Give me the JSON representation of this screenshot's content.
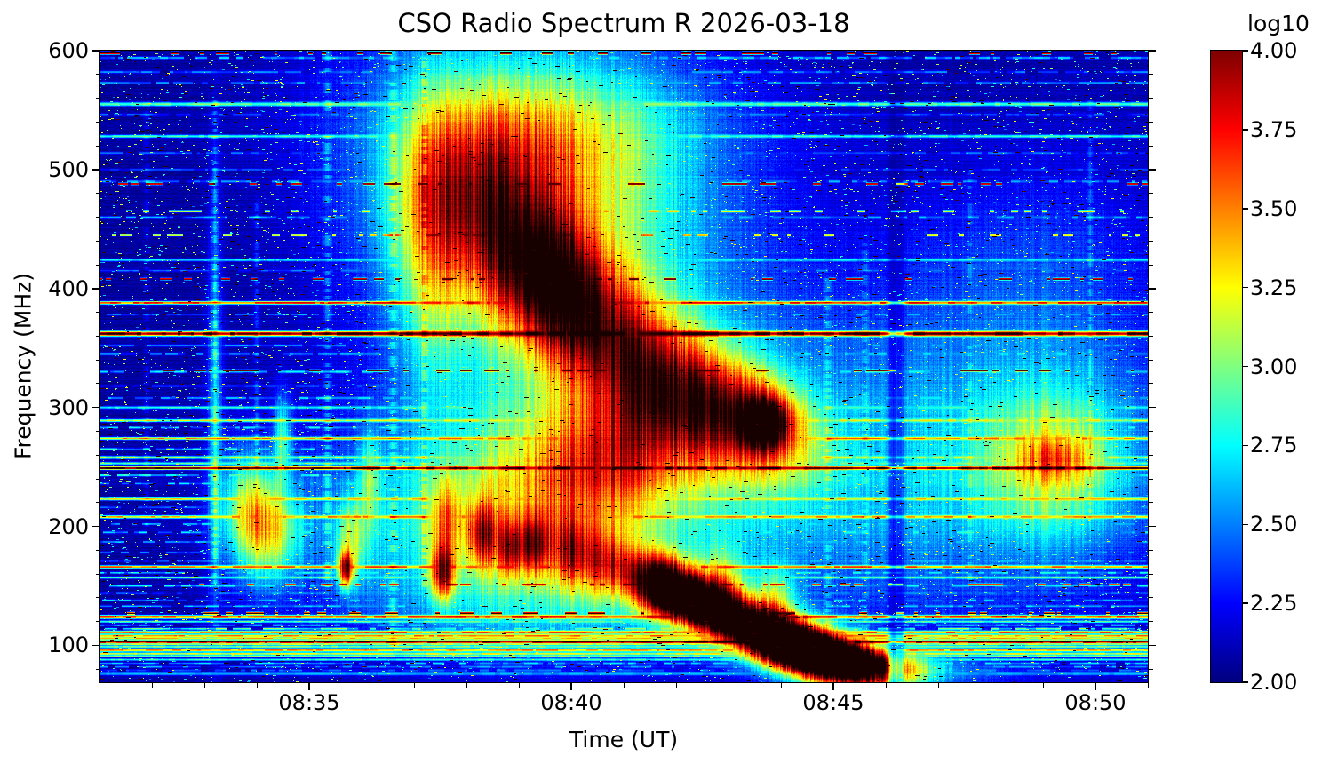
{
  "chart_data": {
    "type": "heatmap",
    "title": "CSO Radio Spectrum R 2026-03-18",
    "xlabel": "Time (UT)",
    "ylabel": "Frequency (MHz)",
    "x_span_minutes": 20,
    "x_major": [
      {
        "m": 4,
        "label": "08:35"
      },
      {
        "m": 9,
        "label": "08:40"
      },
      {
        "m": 14,
        "label": "08:45"
      },
      {
        "m": 19,
        "label": "08:50"
      }
    ],
    "x_minor_step_minutes": 1,
    "y_major": [
      {
        "f": 600,
        "label": "600"
      },
      {
        "f": 500,
        "label": "500"
      },
      {
        "f": 400,
        "label": "400"
      },
      {
        "f": 300,
        "label": "300"
      },
      {
        "f": 200,
        "label": "200"
      },
      {
        "f": 100,
        "label": "100"
      }
    ],
    "y_minor_step_mhz": 20,
    "ylim": [
      69,
      600
    ],
    "grid": false,
    "colorbar": {
      "label": "log10",
      "vmin": 2.0,
      "vmax": 4.0,
      "colormap": "jet",
      "position": "right",
      "ticks": [
        {
          "v": 4.0,
          "label": "4.00"
        },
        {
          "v": 3.75,
          "label": "3.75"
        },
        {
          "v": 3.5,
          "label": "3.50"
        },
        {
          "v": 3.25,
          "label": "3.25"
        },
        {
          "v": 3.0,
          "label": "3.00"
        },
        {
          "v": 2.75,
          "label": "2.75"
        },
        {
          "v": 2.5,
          "label": "2.50"
        },
        {
          "v": 2.25,
          "label": "2.25"
        },
        {
          "v": 2.0,
          "label": "2.00"
        }
      ]
    },
    "background_level": 2.06,
    "noise": {
      "row": 0.04,
      "column": 0.14,
      "pixel": 0.11,
      "bright_speckles": 8000,
      "white_speckles": 3000,
      "dark_speckles": 2000
    },
    "rfi_lines_comment": "persistent horizontal interference lines: [freq_MHz, log10_level, halfwidth_MHz, style]",
    "rfi_lines": [
      [
        598,
        4.3,
        0.8,
        "dots"
      ],
      [
        594,
        2.7,
        0.8,
        "patchy"
      ],
      [
        582,
        2.55,
        0.8,
        "patchy"
      ],
      [
        573,
        2.6,
        0.7,
        "patchy"
      ],
      [
        555,
        3.0,
        1.2,
        "solid"
      ],
      [
        546,
        2.6,
        0.7,
        "patchy"
      ],
      [
        528,
        2.9,
        0.9,
        "solid"
      ],
      [
        514,
        2.5,
        0.7,
        "patchy"
      ],
      [
        500,
        2.45,
        0.7,
        "patchy"
      ],
      [
        490,
        2.6,
        0.8,
        "patchy"
      ],
      [
        488,
        4.2,
        0.5,
        "dots"
      ],
      [
        465,
        3.6,
        0.6,
        "dots"
      ],
      [
        460,
        2.6,
        0.6,
        "patchy"
      ],
      [
        445,
        4.25,
        0.6,
        "dots"
      ],
      [
        424,
        2.75,
        0.8,
        "solid"
      ],
      [
        415,
        2.5,
        0.6,
        "patchy"
      ],
      [
        408,
        4.25,
        0.5,
        "dots"
      ],
      [
        388,
        3.8,
        0.9,
        "solid"
      ],
      [
        378,
        2.6,
        0.6,
        "patchy"
      ],
      [
        362,
        4.3,
        1.4,
        "solid"
      ],
      [
        352,
        2.65,
        0.7,
        "patchy"
      ],
      [
        345,
        2.8,
        0.7,
        "patchy"
      ],
      [
        331,
        4.2,
        0.5,
        "dots"
      ],
      [
        330,
        2.75,
        0.8,
        "patchy"
      ],
      [
        318,
        2.55,
        0.6,
        "patchy"
      ],
      [
        308,
        2.7,
        0.7,
        "patchy"
      ],
      [
        300,
        2.85,
        0.8,
        "solid"
      ],
      [
        289,
        3.25,
        0.8,
        "solid"
      ],
      [
        283,
        2.75,
        0.7,
        "patchy"
      ],
      [
        274,
        3.5,
        0.8,
        "solid"
      ],
      [
        265,
        2.8,
        0.7,
        "patchy"
      ],
      [
        258,
        3.15,
        0.9,
        "solid"
      ],
      [
        253,
        2.95,
        0.8,
        "solid"
      ],
      [
        249,
        4.3,
        0.9,
        "solid"
      ],
      [
        243,
        2.85,
        0.7,
        "patchy"
      ],
      [
        236,
        2.7,
        0.6,
        "patchy"
      ],
      [
        223,
        3.35,
        0.8,
        "solid"
      ],
      [
        216,
        2.7,
        0.6,
        "patchy"
      ],
      [
        208,
        3.5,
        0.9,
        "solid"
      ],
      [
        202,
        2.75,
        0.6,
        "patchy"
      ],
      [
        195,
        2.8,
        0.7,
        "patchy"
      ],
      [
        187,
        2.65,
        0.6,
        "patchy"
      ],
      [
        178,
        2.6,
        0.6,
        "patchy"
      ],
      [
        171,
        2.7,
        0.6,
        "patchy"
      ],
      [
        166,
        3.65,
        0.8,
        "solid"
      ],
      [
        161,
        2.8,
        0.6,
        "patchy"
      ],
      [
        157,
        2.95,
        0.7,
        "solid"
      ],
      [
        151,
        4.2,
        0.5,
        "dots"
      ],
      [
        150,
        2.75,
        0.7,
        "patchy"
      ],
      [
        144,
        2.7,
        0.6,
        "patchy"
      ],
      [
        138,
        2.65,
        0.6,
        "patchy"
      ],
      [
        133,
        2.7,
        0.6,
        "patchy"
      ],
      [
        127,
        4.25,
        0.7,
        "dots"
      ],
      [
        124,
        3.95,
        1.0,
        "solid"
      ],
      [
        120,
        2.95,
        0.7,
        "solid"
      ],
      [
        117,
        2.8,
        0.6,
        "patchy"
      ],
      [
        114,
        3.1,
        0.6,
        "patchy"
      ],
      [
        111,
        3.6,
        0.9,
        "solid"
      ],
      [
        108,
        3.55,
        0.9,
        "solid"
      ],
      [
        106,
        3.4,
        0.8,
        "solid"
      ],
      [
        103,
        4.3,
        1.0,
        "solid"
      ],
      [
        101,
        3.2,
        0.6,
        "solid"
      ],
      [
        99,
        3.05,
        0.8,
        "solid"
      ],
      [
        96,
        3.55,
        0.9,
        "solid"
      ],
      [
        93,
        3.3,
        0.8,
        "solid"
      ],
      [
        91,
        3.0,
        0.7,
        "solid"
      ],
      [
        88,
        2.85,
        0.7,
        "solid"
      ],
      [
        85,
        2.7,
        0.6,
        "patchy"
      ],
      [
        82,
        2.6,
        0.7,
        "patchy"
      ],
      [
        79,
        2.5,
        0.8,
        "patchy"
      ],
      [
        76,
        2.6,
        1.0,
        "solid"
      ]
    ],
    "bursts_comment": "gaussian emission features: [t_min_after_08:31, freq_MHz, sigma_t_min, sigma_f_MHz, amplitude_log10, drift_MHz_per_min]",
    "bursts": [
      [
        8.3,
        430,
        2.1,
        100,
        0.9,
        -15
      ],
      [
        8.6,
        405,
        0.8,
        40,
        1.35,
        -20
      ],
      [
        7.2,
        480,
        0.9,
        55,
        0.75,
        0
      ],
      [
        6.3,
        440,
        0.45,
        90,
        0.5,
        0
      ],
      [
        9.0,
        525,
        1.4,
        45,
        0.4,
        0
      ],
      [
        10.3,
        330,
        1.1,
        45,
        0.85,
        -30
      ],
      [
        11.5,
        305,
        1.0,
        38,
        0.8,
        -20
      ],
      [
        12.6,
        290,
        0.8,
        30,
        0.9,
        -15
      ],
      [
        12.7,
        287,
        0.3,
        14,
        1.3,
        0
      ],
      [
        8.8,
        240,
        1.4,
        45,
        0.65,
        0
      ],
      [
        9.8,
        260,
        0.8,
        35,
        0.55,
        0
      ],
      [
        12.4,
        115,
        1.6,
        17,
        1.8,
        -20
      ],
      [
        11.2,
        140,
        0.55,
        16,
        1.2,
        -15
      ],
      [
        13.4,
        100,
        0.9,
        15,
        1.75,
        -12
      ],
      [
        14.3,
        88,
        0.8,
        12,
        1.35,
        -8
      ],
      [
        11.9,
        152,
        0.3,
        22,
        0.7,
        0
      ],
      [
        12.9,
        140,
        0.28,
        20,
        0.6,
        0
      ],
      [
        14.9,
        84,
        1.3,
        10,
        0.65,
        -3
      ],
      [
        10.7,
        150,
        0.35,
        20,
        0.85,
        0
      ],
      [
        2.2,
        300,
        0.1,
        120,
        0.5,
        0
      ],
      [
        2.8,
        215,
        0.35,
        35,
        0.8,
        0
      ],
      [
        3.3,
        196,
        0.4,
        30,
        0.85,
        0
      ],
      [
        3.5,
        275,
        0.12,
        25,
        0.65,
        0
      ],
      [
        4.7,
        164,
        0.1,
        10,
        1.35,
        0
      ],
      [
        4.8,
        188,
        0.22,
        25,
        0.6,
        0
      ],
      [
        5.15,
        242,
        0.14,
        28,
        0.5,
        0
      ],
      [
        6.55,
        161,
        0.16,
        16,
        1.25,
        0
      ],
      [
        6.6,
        205,
        0.2,
        24,
        0.65,
        0
      ],
      [
        7.3,
        192,
        0.2,
        20,
        1.05,
        0
      ],
      [
        7.85,
        181,
        0.18,
        17,
        1.0,
        0
      ],
      [
        8.3,
        183,
        0.18,
        17,
        1.05,
        0
      ],
      [
        8.95,
        176,
        0.25,
        20,
        0.75,
        0
      ],
      [
        9.6,
        166,
        0.3,
        22,
        0.6,
        0
      ],
      [
        8.0,
        185,
        2.2,
        50,
        0.38,
        0
      ],
      [
        8.5,
        130,
        2.0,
        30,
        0.32,
        0
      ],
      [
        18.2,
        255,
        1.05,
        45,
        0.75,
        0
      ],
      [
        18.25,
        257,
        0.5,
        12,
        0.45,
        0
      ],
      [
        17.6,
        410,
        1.6,
        70,
        0.2,
        0
      ],
      [
        12.0,
        230,
        4.5,
        85,
        0.32,
        0
      ],
      [
        15.6,
        255,
        2.3,
        95,
        0.28,
        0
      ],
      [
        9.0,
        540,
        2.6,
        55,
        0.28,
        0
      ],
      [
        19.0,
        300,
        2.0,
        150,
        0.15,
        0
      ],
      [
        10.0,
        430,
        3.2,
        120,
        0.22,
        -10
      ],
      [
        5.5,
        210,
        1.8,
        60,
        0.28,
        0
      ]
    ],
    "streaks_comment": "vertical features: [t_min, width_min, f_low, f_high, amplitude, dotted]",
    "streaks": [
      [
        15.15,
        0.07,
        69,
        600,
        -0.5,
        0
      ],
      [
        15.3,
        0.05,
        69,
        600,
        -0.35,
        0
      ],
      [
        4.35,
        0.05,
        140,
        600,
        0.3,
        1
      ],
      [
        5.6,
        0.05,
        100,
        600,
        0.28,
        1
      ],
      [
        6.2,
        0.04,
        150,
        600,
        0.3,
        1
      ],
      [
        2.2,
        0.04,
        150,
        560,
        0.28,
        1
      ],
      [
        13.9,
        0.05,
        80,
        420,
        0.22,
        1
      ],
      [
        14.6,
        0.04,
        100,
        450,
        0.2,
        1
      ],
      [
        16.6,
        0.04,
        150,
        500,
        0.18,
        1
      ],
      [
        18.9,
        0.04,
        200,
        560,
        0.2,
        1
      ],
      [
        0.9,
        0.04,
        200,
        550,
        0.15,
        1
      ],
      [
        3.0,
        0.04,
        250,
        480,
        0.22,
        1
      ]
    ],
    "colors": {
      "figure_background": "#ffffff",
      "text": "#000000",
      "spine": "#000000"
    }
  }
}
